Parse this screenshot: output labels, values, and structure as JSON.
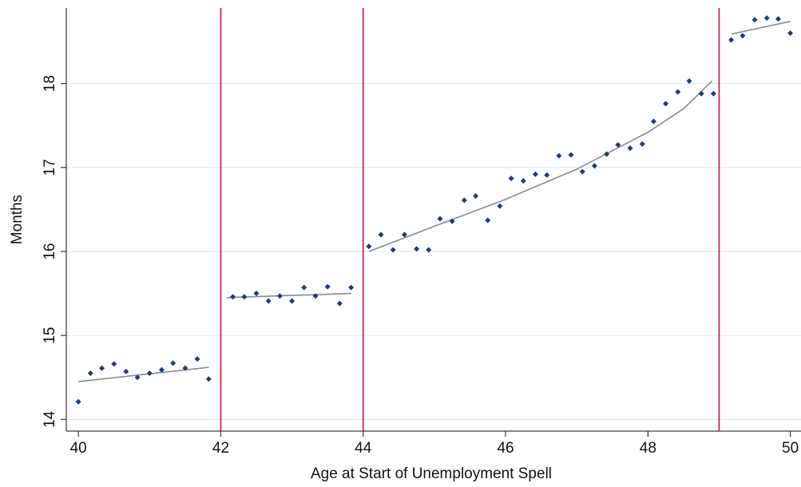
{
  "chart_data": {
    "type": "scatter",
    "x_label": "Age at Start of Unemployment Spell",
    "y_label": "Months",
    "xlim": [
      39.83,
      50.15
    ],
    "ylim": [
      13.86,
      18.9
    ],
    "xticks": [
      40,
      42,
      44,
      46,
      48,
      50
    ],
    "yticks": [
      14,
      15,
      16,
      17,
      18
    ],
    "grid": true,
    "point_color": "#1f3d6b",
    "line_color": "#8a8a8a",
    "cutoff_color": "#c0143c",
    "cutoffs": [
      42,
      44,
      49
    ],
    "series": [
      {
        "x": [
          40,
          40.17,
          40.33,
          40.5,
          40.67,
          40.83,
          41,
          41.17,
          41.33,
          41.5,
          41.67,
          41.83
        ],
        "values": [
          14.21,
          14.55,
          14.61,
          14.66,
          14.57,
          14.5,
          14.55,
          14.59,
          14.67,
          14.61,
          14.72,
          14.48
        ]
      },
      {
        "x": [
          42.17,
          42.33,
          42.5,
          42.67,
          42.83,
          43,
          43.17,
          43.33,
          43.5,
          43.67,
          43.83
        ],
        "values": [
          15.46,
          15.46,
          15.5,
          15.41,
          15.47,
          15.41,
          15.57,
          15.47,
          15.58,
          15.38,
          15.57
        ]
      },
      {
        "x": [
          44.08,
          44.25,
          44.42,
          44.58,
          44.75,
          44.92,
          45.08,
          45.25,
          45.42,
          45.58,
          45.75,
          45.92,
          46.08,
          46.25,
          46.42,
          46.58,
          46.75,
          46.92,
          47.08,
          47.25,
          47.42,
          47.58,
          47.75,
          47.92,
          48.08,
          48.25,
          48.42,
          48.58,
          48.75,
          48.92
        ],
        "values": [
          16.06,
          16.2,
          16.02,
          16.2,
          16.03,
          16.02,
          16.39,
          16.36,
          16.61,
          16.66,
          16.37,
          16.54,
          16.87,
          16.84,
          16.92,
          16.91,
          17.14,
          17.15,
          16.95,
          17.02,
          17.16,
          17.27,
          17.23,
          17.28,
          17.55,
          17.76,
          17.9,
          18.03,
          17.88,
          17.88
        ]
      },
      {
        "x": [
          49.17,
          49.33,
          49.5,
          49.67,
          49.83,
          50
        ],
        "values": [
          18.52,
          18.57,
          18.76,
          18.78,
          18.77,
          18.6
        ]
      }
    ],
    "fit_lines": [
      {
        "x": [
          40,
          41.83
        ],
        "values": [
          14.45,
          14.62
        ]
      },
      {
        "x": [
          42.08,
          43.83
        ],
        "values": [
          15.45,
          15.5
        ]
      },
      {
        "x": [
          44.08,
          45,
          46,
          47,
          48,
          48.5,
          48.9
        ],
        "values": [
          16.0,
          16.3,
          16.62,
          16.98,
          17.42,
          17.7,
          18.03
        ]
      },
      {
        "x": [
          49.17,
          50
        ],
        "values": [
          18.59,
          18.74
        ]
      }
    ]
  }
}
